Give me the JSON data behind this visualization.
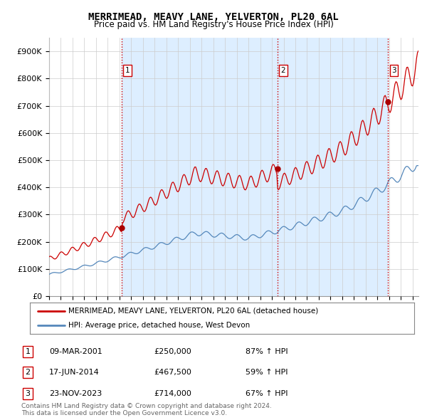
{
  "title": "MERRIMEAD, MEAVY LANE, YELVERTON, PL20 6AL",
  "subtitle": "Price paid vs. HM Land Registry's House Price Index (HPI)",
  "ytick_values": [
    0,
    100000,
    200000,
    300000,
    400000,
    500000,
    600000,
    700000,
    800000,
    900000
  ],
  "ylim": [
    0,
    950000
  ],
  "xlim_start": 1995.0,
  "xlim_end": 2026.5,
  "sale_color": "#cc0000",
  "hpi_color": "#5588bb",
  "vline_color": "#cc0000",
  "grid_color": "#cccccc",
  "shade_color": "#ddeeff",
  "dot_color": "#aa0000",
  "purchases": [
    {
      "label": "1",
      "date_num": 2001.19,
      "price": 250000
    },
    {
      "label": "2",
      "date_num": 2014.46,
      "price": 467500
    },
    {
      "label": "3",
      "date_num": 2023.9,
      "price": 714000
    }
  ],
  "purchase_table": [
    {
      "num": "1",
      "date": "09-MAR-2001",
      "price": "£250,000",
      "note": "87% ↑ HPI"
    },
    {
      "num": "2",
      "date": "17-JUN-2014",
      "price": "£467,500",
      "note": "59% ↑ HPI"
    },
    {
      "num": "3",
      "date": "23-NOV-2023",
      "price": "£714,000",
      "note": "67% ↑ HPI"
    }
  ],
  "legend_line1": "MERRIMEAD, MEAVY LANE, YELVERTON, PL20 6AL (detached house)",
  "legend_line2": "HPI: Average price, detached house, West Devon",
  "footnote": "Contains HM Land Registry data © Crown copyright and database right 2024.\nThis data is licensed under the Open Government Licence v3.0.",
  "background_color": "#ffffff",
  "marker_y": 830000
}
